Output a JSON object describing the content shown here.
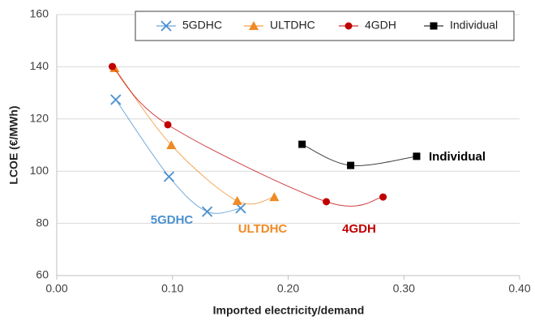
{
  "chart_data": {
    "type": "scatter",
    "xlabel": "Imported electricity/demand",
    "ylabel": "LCOE (€/MWh)",
    "xlim": [
      0,
      0.4
    ],
    "xticks": [
      {
        "value": 0,
        "label": "0.00"
      },
      {
        "value": 0.1,
        "label": "0.10"
      },
      {
        "value": 0.2,
        "label": "0.20"
      },
      {
        "value": 0.3,
        "label": "0.30"
      },
      {
        "value": 0.4,
        "label": "0.40"
      }
    ],
    "ylim": [
      60,
      160
    ],
    "yticks": [
      60,
      80,
      100,
      120,
      140,
      160
    ],
    "grid": true,
    "smooth": true,
    "legend": "upper right",
    "series": [
      {
        "name": "5GDHC",
        "color": "#4a90d0",
        "marker": "x",
        "x": [
          0.051,
          0.097,
          0.13,
          0.159
        ],
        "values": [
          127.4,
          97.9,
          84.5,
          85.8
        ]
      },
      {
        "name": "ULTDHC",
        "color": "#f08a24",
        "marker": "triangle",
        "x": [
          0.05,
          0.099,
          0.156,
          0.188
        ],
        "values": [
          139.5,
          110,
          88.6,
          90.1
        ]
      },
      {
        "name": "4GDH",
        "color": "#c00000",
        "marker": "circle",
        "x": [
          0.048,
          0.096,
          0.233,
          0.282
        ],
        "values": [
          140.1,
          117.8,
          88.3,
          90.1
        ]
      },
      {
        "name": "Individual",
        "color": "#000000",
        "marker": "square",
        "x": [
          0.212,
          0.254,
          0.311
        ],
        "values": [
          110.3,
          102.2,
          105.7
        ]
      }
    ],
    "annotations": [
      "5GDHC",
      "ULTDHC",
      "4GDH",
      "Individual"
    ]
  }
}
